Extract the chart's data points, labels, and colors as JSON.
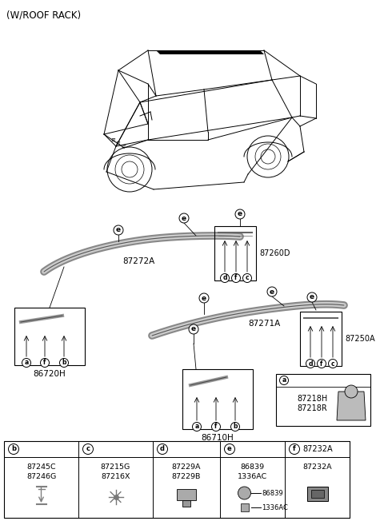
{
  "title": "(W/ROOF RACK)",
  "bg_color": "#ffffff",
  "rail_87272A_label": "87272A",
  "rail_87271A_label": "87271A",
  "box_87260D_label": "87260D",
  "box_87250A_label": "87250A",
  "box_86720H_label": "86720H",
  "box_86710H_label": "86710H",
  "box_87218_labels": [
    "87218H",
    "87218R"
  ],
  "box_87232A_label": "87232A",
  "bottom_cols": [
    "b",
    "c",
    "d",
    "e",
    "f"
  ],
  "bottom_parts": [
    [
      "87245C",
      "87246G"
    ],
    [
      "87215G",
      "87216X"
    ],
    [
      "87229A",
      "87229B"
    ],
    [
      "86839",
      "1336AC"
    ],
    [
      "87232A"
    ]
  ],
  "circle_letters_87260D": [
    "d",
    "f",
    "c"
  ],
  "circle_letters_86720H": [
    "a",
    "f",
    "b"
  ],
  "circle_letters_87250A": [
    "d",
    "f",
    "c"
  ],
  "circle_letters_86710H": [
    "a",
    "f",
    "b"
  ]
}
